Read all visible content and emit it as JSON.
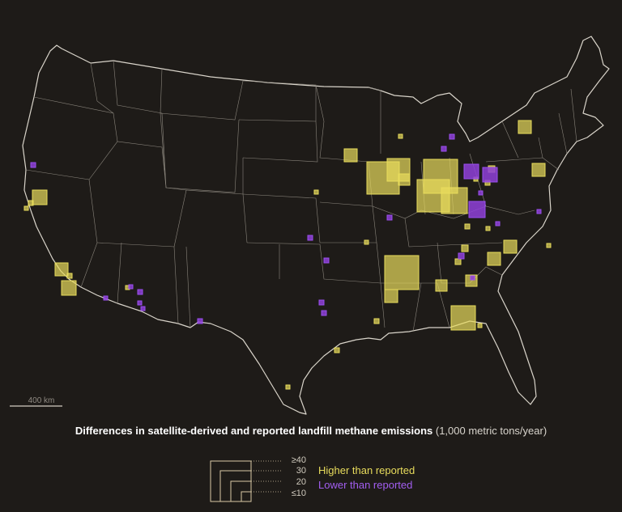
{
  "map": {
    "region": "Contiguous United States",
    "scale_label": "400 km",
    "colors": {
      "background": "#1e1b18",
      "borders": "#d9d4ca",
      "higher": "#e8dc5c",
      "lower": "#8f3fd9"
    }
  },
  "legend": {
    "title_bold": "Differences in satellite-derived and reported landfill methane emissions",
    "title_unit": "(1,000 metric tons/year)",
    "size_labels": [
      "≥40",
      "30",
      "20",
      "≤10"
    ],
    "categories": [
      {
        "label": "Higher than reported",
        "color": "#e8dc5c"
      },
      {
        "label": "Lower than reported",
        "color": "#a25ef0"
      }
    ]
  }
}
